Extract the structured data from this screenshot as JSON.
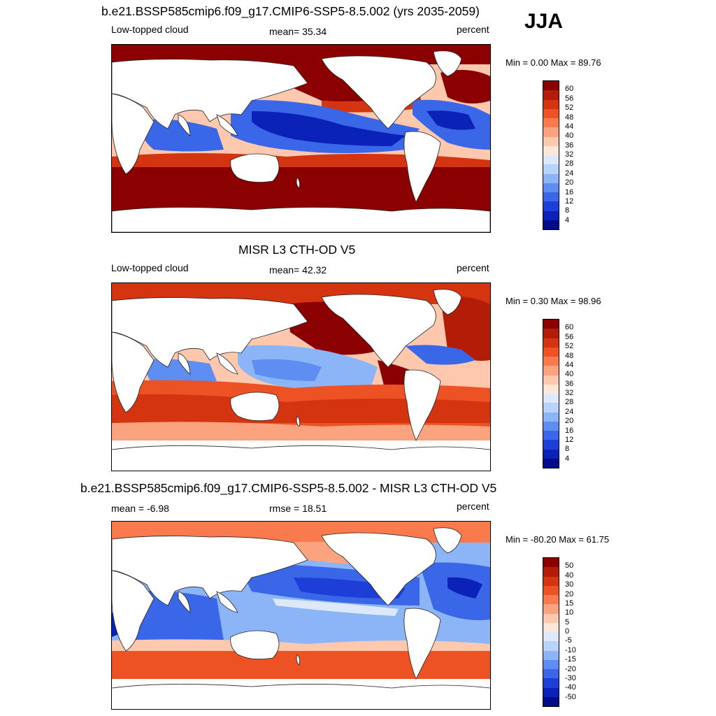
{
  "season": "JJA",
  "panels": [
    {
      "title": "b.e21.BSSP585cmip6.f09_g17.CMIP6-SSP5-8.5.002 (yrs 2035-2059)",
      "left_label": "Low-topped cloud",
      "center_label": "mean=  35.34",
      "right_label": "percent",
      "minmax": "Min =   0.00 Max =  89.76",
      "ticks": [
        "60",
        "56",
        "52",
        "48",
        "44",
        "40",
        "36",
        "32",
        "28",
        "24",
        "20",
        "16",
        "12",
        "8",
        "4"
      ],
      "colors": [
        "#8b0000",
        "#b31c06",
        "#d43510",
        "#ec5224",
        "#f97a4d",
        "#fba37f",
        "#fdc8ae",
        "#fee7d8",
        "#dde9fb",
        "#b7d2fb",
        "#8cb5f7",
        "#5f8ef2",
        "#3a66e8",
        "#1d3fd8",
        "#0a22b8",
        "#000c8a"
      ]
    },
    {
      "title": "MISR L3 CTH-OD V5",
      "left_label": "Low-topped cloud",
      "center_label": "mean=  42.32",
      "right_label": "percent",
      "minmax": "Min =   0.30 Max =  98.96",
      "ticks": [
        "60",
        "56",
        "52",
        "48",
        "44",
        "40",
        "36",
        "32",
        "28",
        "24",
        "20",
        "16",
        "12",
        "8",
        "4"
      ],
      "colors": [
        "#8b0000",
        "#b31c06",
        "#d43510",
        "#ec5224",
        "#f97a4d",
        "#fba37f",
        "#fdc8ae",
        "#fee7d8",
        "#dde9fb",
        "#b7d2fb",
        "#8cb5f7",
        "#5f8ef2",
        "#3a66e8",
        "#1d3fd8",
        "#0a22b8",
        "#000c8a"
      ]
    },
    {
      "title": "b.e21.BSSP585cmip6.f09_g17.CMIP6-SSP5-8.5.002 - MISR L3 CTH-OD V5",
      "left_label": "mean =  -6.98",
      "center_label": "rmse =  18.51",
      "right_label": "percent",
      "minmax": "Min = -80.20 Max =  61.75",
      "ticks": [
        "50",
        "40",
        "30",
        "20",
        "15",
        "10",
        "5",
        "0",
        "-5",
        "-10",
        "-15",
        "-20",
        "-30",
        "-40",
        "-50"
      ],
      "colors": [
        "#8b0000",
        "#b31c06",
        "#d43510",
        "#ec5224",
        "#f97a4d",
        "#fba37f",
        "#fdc8ae",
        "#fee7d8",
        "#dde9fb",
        "#b7d2fb",
        "#8cb5f7",
        "#5f8ef2",
        "#3a66e8",
        "#1d3fd8",
        "#0a22b8",
        "#000c8a"
      ]
    }
  ]
}
